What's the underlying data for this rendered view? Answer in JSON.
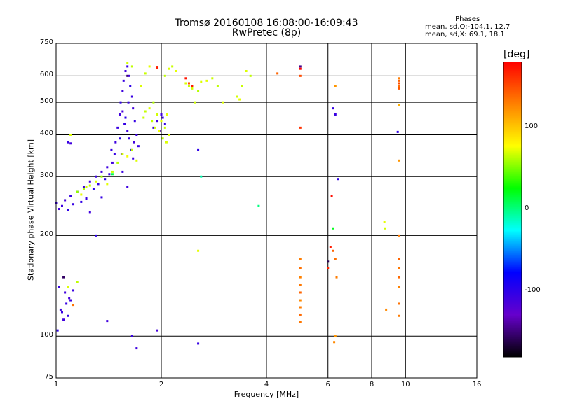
{
  "chart_data": {
    "type": "scatter",
    "title": "Tromsø 20160108 16:08:00-16:09:43",
    "subtitle": "RwPretec (8p)",
    "xlabel": "Frequency [MHz]",
    "ylabel": "Stationary phase Virtual Height [km]",
    "x_scale": "log",
    "y_scale": "log",
    "xlim": [
      1,
      16
    ],
    "ylim": [
      75,
      750
    ],
    "x_ticks": [
      "1",
      "2",
      "4",
      "6",
      "8",
      "10",
      "16"
    ],
    "y_ticks": [
      "75",
      "100",
      "200",
      "300",
      "400",
      "500",
      "600",
      "750"
    ],
    "x_gridlines": [
      2,
      4,
      6,
      8,
      10
    ],
    "y_gridlines": [
      100,
      200,
      300,
      400,
      500,
      600
    ],
    "grid": true,
    "phase_stats": {
      "heading": "Phases",
      "line_o": "mean, sd,O:-104.1, 12.7",
      "line_x": "mean, sd,X:  69.1, 18.1"
    },
    "colorbar": {
      "title": "[deg]",
      "range": [
        -180,
        180
      ],
      "ticks": [
        "100",
        "0",
        "-100"
      ],
      "tick_values": [
        100,
        0,
        -100
      ],
      "colormap": [
        "#000000",
        "#6600cc",
        "#0000ff",
        "#00ffff",
        "#00ff00",
        "#ffff00",
        "#ff8000",
        "#ff0000"
      ]
    },
    "series": [
      {
        "points": [
          [
            1.0,
            250,
            -105
          ],
          [
            1.02,
            240,
            -110
          ],
          [
            1.04,
            245,
            -108
          ],
          [
            1.06,
            255,
            -112
          ],
          [
            1.08,
            238,
            -100
          ],
          [
            1.1,
            262,
            -106
          ],
          [
            1.12,
            248,
            -104
          ],
          [
            1.15,
            270,
            -110
          ],
          [
            1.18,
            252,
            -102
          ],
          [
            1.2,
            280,
            -108
          ],
          [
            1.22,
            258,
            -105
          ],
          [
            1.25,
            290,
            -112
          ],
          [
            1.28,
            275,
            -98
          ],
          [
            1.3,
            300,
            -106
          ],
          [
            1.32,
            285,
            -104
          ],
          [
            1.35,
            310,
            -110
          ],
          [
            1.38,
            295,
            -100
          ],
          [
            1.4,
            320,
            -108
          ],
          [
            1.42,
            305,
            -105
          ],
          [
            1.45,
            330,
            -110
          ],
          [
            1.47,
            350,
            -104
          ],
          [
            1.48,
            380,
            -108
          ],
          [
            1.5,
            420,
            -106
          ],
          [
            1.52,
            460,
            -110
          ],
          [
            1.53,
            500,
            -102
          ],
          [
            1.55,
            540,
            -108
          ],
          [
            1.56,
            580,
            -105
          ],
          [
            1.58,
            620,
            -110
          ],
          [
            1.6,
            640,
            -104
          ],
          [
            1.62,
            600,
            -108
          ],
          [
            1.63,
            560,
            -100
          ],
          [
            1.65,
            520,
            -106
          ],
          [
            1.66,
            480,
            -112
          ],
          [
            1.68,
            440,
            -104
          ],
          [
            1.7,
            400,
            -108
          ],
          [
            1.72,
            370,
            -105
          ],
          [
            1.58,
            450,
            -98
          ],
          [
            1.6,
            410,
            -110
          ],
          [
            1.62,
            390,
            -106
          ],
          [
            1.64,
            360,
            -102
          ],
          [
            1.66,
            340,
            -108
          ],
          [
            1.55,
            470,
            -112
          ],
          [
            1.57,
            430,
            -104
          ],
          [
            1.61,
            500,
            -106
          ],
          [
            1.67,
            380,
            -110
          ],
          [
            1.52,
            390,
            -100
          ],
          [
            1.54,
            350,
            -108
          ],
          [
            1.44,
            360,
            -105
          ],
          [
            1.9,
            420,
            -105
          ],
          [
            1.95,
            440,
            -108
          ],
          [
            2.0,
            460,
            -110
          ],
          [
            2.05,
            430,
            -104
          ],
          [
            1.98,
            410,
            -112
          ],
          [
            2.02,
            450,
            -106
          ],
          [
            1.3,
            200,
            -100
          ],
          [
            1.05,
            112,
            -110
          ],
          [
            1.03,
            120,
            -108
          ],
          [
            1.07,
            125,
            -105
          ],
          [
            1.09,
            130,
            -112
          ],
          [
            1.02,
            140,
            -104
          ],
          [
            1.04,
            118,
            -106
          ],
          [
            1.06,
            135,
            -110
          ],
          [
            1.08,
            115,
            -102
          ],
          [
            1.1,
            128,
            -108
          ],
          [
            1.01,
            104,
            -100
          ],
          [
            1.12,
            137,
            -106
          ],
          [
            1.4,
            111,
            -110
          ],
          [
            1.7,
            92,
            -108
          ],
          [
            1.95,
            104,
            -112
          ],
          [
            1.65,
            100,
            -106
          ],
          [
            2.55,
            95,
            -104
          ],
          [
            2.55,
            360,
            -100
          ],
          [
            1.08,
            380,
            -105
          ],
          [
            1.1,
            377,
            -110
          ],
          [
            6.2,
            480,
            -104
          ],
          [
            6.3,
            460,
            -106
          ],
          [
            6.4,
            295,
            -100
          ],
          [
            9.5,
            408,
            -102
          ],
          [
            1.6,
            280,
            -108
          ],
          [
            1.55,
            310,
            -106
          ],
          [
            1.35,
            260,
            -104
          ],
          [
            1.25,
            235,
            -110
          ]
        ]
      },
      {
        "points": [
          [
            1.2,
            275,
            60
          ],
          [
            1.25,
            282,
            65
          ],
          [
            1.3,
            290,
            70
          ],
          [
            1.35,
            300,
            58
          ],
          [
            1.4,
            285,
            72
          ],
          [
            1.45,
            310,
            66
          ],
          [
            1.5,
            330,
            62
          ],
          [
            1.55,
            350,
            68
          ],
          [
            1.6,
            345,
            75
          ],
          [
            1.65,
            360,
            64
          ],
          [
            1.7,
            335,
            70
          ],
          [
            1.15,
            270,
            55
          ],
          [
            1.18,
            265,
            72
          ],
          [
            1.22,
            280,
            68
          ],
          [
            1.8,
            470,
            65
          ],
          [
            1.85,
            480,
            70
          ],
          [
            1.9,
            500,
            62
          ],
          [
            1.95,
            460,
            68
          ],
          [
            2.0,
            440,
            72
          ],
          [
            2.05,
            420,
            66
          ],
          [
            2.1,
            400,
            70
          ],
          [
            1.88,
            440,
            64
          ],
          [
            1.92,
            420,
            68
          ],
          [
            1.97,
            410,
            74
          ],
          [
            2.02,
            390,
            62
          ],
          [
            2.07,
            380,
            70
          ],
          [
            1.78,
            450,
            66
          ],
          [
            2.08,
            460,
            72
          ],
          [
            2.1,
            630,
            70
          ],
          [
            2.15,
            640,
            66
          ],
          [
            2.2,
            620,
            72
          ],
          [
            2.05,
            600,
            64
          ],
          [
            2.35,
            570,
            70
          ],
          [
            2.4,
            560,
            66
          ],
          [
            2.45,
            550,
            68
          ],
          [
            2.55,
            540,
            62
          ],
          [
            2.6,
            575,
            70
          ],
          [
            2.7,
            580,
            72
          ],
          [
            2.8,
            590,
            66
          ],
          [
            2.9,
            560,
            64
          ],
          [
            3.0,
            500,
            70
          ],
          [
            3.3,
            520,
            68
          ],
          [
            3.35,
            510,
            72
          ],
          [
            3.4,
            560,
            66
          ],
          [
            3.5,
            620,
            70
          ],
          [
            3.6,
            600,
            64
          ],
          [
            1.75,
            560,
            70
          ],
          [
            1.8,
            610,
            66
          ],
          [
            1.85,
            640,
            72
          ],
          [
            1.6,
            655,
            68
          ],
          [
            1.65,
            640,
            64
          ],
          [
            2.55,
            180,
            72
          ],
          [
            2.5,
            500,
            68
          ],
          [
            1.1,
            400,
            70
          ],
          [
            1.15,
            145,
            64
          ],
          [
            1.08,
            140,
            70
          ],
          [
            8.7,
            220,
            72
          ],
          [
            8.75,
            210,
            68
          ]
        ]
      },
      {
        "points": [
          [
            5.0,
            170,
            130
          ],
          [
            5.0,
            160,
            135
          ],
          [
            5.0,
            150,
            128
          ],
          [
            5.0,
            142,
            132
          ],
          [
            5.0,
            135,
            140
          ],
          [
            5.0,
            128,
            125
          ],
          [
            5.0,
            122,
            130
          ],
          [
            5.0,
            116,
            138
          ],
          [
            5.0,
            110,
            132
          ],
          [
            5.0,
            600,
            150
          ],
          [
            5.0,
            420,
            160
          ],
          [
            6.2,
            180,
            140
          ],
          [
            6.35,
            150,
            130
          ],
          [
            6.25,
            96,
            125
          ],
          [
            6.3,
            100,
            120
          ],
          [
            6.3,
            170,
            135
          ],
          [
            9.6,
            580,
            140
          ],
          [
            9.6,
            570,
            150
          ],
          [
            9.6,
            560,
            135
          ],
          [
            9.6,
            550,
            145
          ],
          [
            9.6,
            590,
            130
          ],
          [
            9.6,
            170,
            140
          ],
          [
            9.6,
            160,
            132
          ],
          [
            9.6,
            150,
            138
          ],
          [
            9.6,
            140,
            128
          ],
          [
            9.6,
            125,
            135
          ],
          [
            9.6,
            115,
            130
          ],
          [
            9.6,
            335,
            120
          ],
          [
            9.6,
            200,
            130
          ],
          [
            9.6,
            490,
            110
          ],
          [
            8.8,
            120,
            125
          ],
          [
            6.3,
            560,
            120
          ],
          [
            4.3,
            610,
            140
          ],
          [
            1.12,
            124,
            135
          ],
          [
            2.4,
            570,
            150
          ]
        ]
      },
      {
        "points": [
          [
            6.1,
            185,
            170
          ],
          [
            6.15,
            263,
            175
          ],
          [
            5.0,
            630,
            178
          ],
          [
            2.35,
            590,
            172
          ],
          [
            6.0,
            160,
            165
          ],
          [
            2.45,
            560,
            170
          ],
          [
            1.95,
            635,
            168
          ]
        ]
      },
      {
        "points": [
          [
            6.0,
            167,
            -160
          ],
          [
            1.6,
            600,
            -150
          ],
          [
            1.05,
            150,
            -155
          ],
          [
            5.0,
            640,
            -145
          ]
        ]
      },
      {
        "points": [
          [
            3.8,
            245,
            0
          ],
          [
            2.6,
            300,
            -10
          ],
          [
            6.2,
            210,
            20
          ],
          [
            1.45,
            305,
            10
          ]
        ]
      }
    ]
  }
}
